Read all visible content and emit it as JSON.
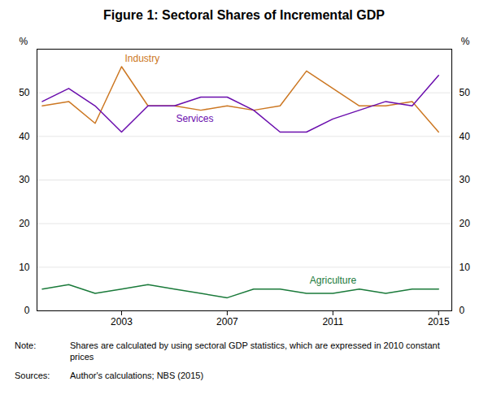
{
  "chart_data": {
    "type": "line",
    "title": "Figure 1: Sectoral Shares of Incremental GDP",
    "x": [
      2000,
      2001,
      2002,
      2003,
      2004,
      2005,
      2006,
      2007,
      2008,
      2009,
      2010,
      2011,
      2012,
      2013,
      2014,
      2015
    ],
    "series": [
      {
        "name": "Industry",
        "color": "#CC7722",
        "values": [
          47,
          48,
          43,
          56,
          47,
          47,
          46,
          47,
          46,
          47,
          55,
          51,
          47,
          47,
          48,
          41
        ]
      },
      {
        "name": "Services",
        "color": "#6A0DAD",
        "values": [
          48,
          51,
          47,
          41,
          47,
          47,
          49,
          49,
          46,
          41,
          41,
          44,
          46,
          48,
          47,
          54
        ]
      },
      {
        "name": "Agriculture",
        "color": "#1a7a3a",
        "values": [
          5,
          6,
          4,
          5,
          6,
          5,
          4,
          3,
          5,
          5,
          4,
          4,
          5,
          4,
          5,
          5
        ]
      }
    ],
    "xlim": [
      1999.8,
      2015.5
    ],
    "xticks": [
      2003,
      2007,
      2011,
      2015
    ],
    "ylim": [
      0,
      60
    ],
    "yticks": [
      0,
      10,
      20,
      30,
      40,
      50
    ],
    "ylabel": "%",
    "y2label": "%",
    "y2lim": [
      0,
      60
    ],
    "y2ticks": [
      0,
      10,
      20,
      30,
      40,
      50
    ],
    "grid": true,
    "annotations": [
      {
        "label": "Note:",
        "text": "Shares are calculated by using sectoral GDP statistics, which are expressed in 2010 constant\nprices"
      },
      {
        "label": "Sources:",
        "text": "Author's calculations; NBS (2015)"
      }
    ]
  }
}
